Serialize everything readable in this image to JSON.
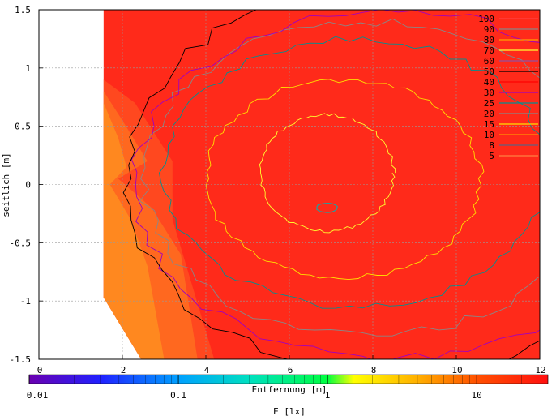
{
  "chart_data": {
    "type": "heatmap",
    "title": "",
    "xlabel": "Entfernung [m]",
    "ylabel": "seitlich [m]",
    "xlim": [
      0,
      12
    ],
    "ylim": [
      -1.5,
      1.5
    ],
    "x_ticks": [
      0,
      2,
      4,
      6,
      8,
      10,
      12
    ],
    "y_ticks": [
      -1.5,
      -1,
      -0.5,
      0,
      0.5,
      1,
      1.5
    ],
    "x_tick_labels": [
      "0",
      "2",
      "4",
      "6",
      "8",
      "10",
      "12"
    ],
    "y_tick_labels": [
      "-1.5",
      "-1",
      "-0.5",
      "0",
      "0.5",
      "1",
      "1.5"
    ],
    "grid": true,
    "legend_position": "top-right",
    "legend_title": "",
    "contour_levels": [
      100,
      90,
      80,
      70,
      60,
      50,
      40,
      30,
      25,
      20,
      15,
      10,
      8,
      5
    ],
    "contour_level_labels": [
      "100",
      "90",
      "80",
      "70",
      "60",
      "50",
      "40",
      "30",
      "25",
      "20",
      "15",
      "10",
      "8",
      "5"
    ],
    "contour_colors": [
      "#ff4040",
      "#888888",
      "#ffa000",
      "#ffff30",
      "#9050a0",
      "#000000",
      "#ff0000",
      "#a000c0",
      "#009090",
      "#888888",
      "#ffe000",
      "#ff9000",
      "#606080",
      "#ff8040"
    ],
    "colorbar": {
      "label": "E [lx]",
      "scale": "log",
      "min": 0.01,
      "max": 30,
      "tick_values": [
        0.01,
        0.1,
        1,
        10
      ],
      "tick_labels": [
        "0.01",
        "0.1",
        "1",
        "10"
      ],
      "gradient_stops": [
        {
          "value": 0.01,
          "color": "#6a00b0"
        },
        {
          "value": 0.03,
          "color": "#2020ff"
        },
        {
          "value": 0.1,
          "color": "#00a0ff"
        },
        {
          "value": 0.3,
          "color": "#00e0c0"
        },
        {
          "value": 1,
          "color": "#00ff40"
        },
        {
          "value": 1.5,
          "color": "#ffff00"
        },
        {
          "value": 4,
          "color": "#ffb000"
        },
        {
          "value": 10,
          "color": "#ff5000"
        },
        {
          "value": 30,
          "color": "#ff1010"
        }
      ]
    },
    "background_fill_color": "#ff2a1a",
    "zone_colors": {
      "near_band_1": "#ff6a20",
      "near_band_2": "#ff8a20",
      "near_band_3": "#ff4a20"
    }
  }
}
